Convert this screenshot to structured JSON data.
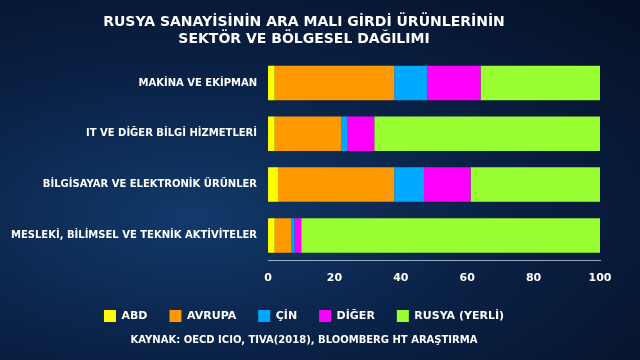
{
  "chart_data": {
    "type": "bar",
    "orientation": "horizontal",
    "stacked": true,
    "title": [
      "RUSYA SANAYİSİNİN ARA MALI GİRDİ ÜRÜNLERİNİN",
      "SEKTÖR VE BÖLGESEL DAĞILIMI"
    ],
    "source": "KAYNAK: OECD ICIO, TIVA(2018), BLOOMBERG HT ARAŞTIRMA",
    "categories": [
      "MAKİNA VE EKİPMAN",
      "IT VE DİĞER BİLGİ HİZMETLERİ",
      "BİLGİSAYAR VE ELEKTRONİK ÜRÜNLER",
      "MESLEKİ, BİLİMSEL VE TEKNİK AKTİVİTELER"
    ],
    "series": [
      {
        "name": "ABD",
        "color": "#ffff00",
        "values": [
          2,
          2,
          3,
          2
        ]
      },
      {
        "name": "AVRUPA",
        "color": "#ff9900",
        "values": [
          36,
          20,
          35,
          5
        ]
      },
      {
        "name": "ÇİN",
        "color": "#00a8ff",
        "values": [
          10,
          2,
          9,
          1
        ]
      },
      {
        "name": "DİĞER",
        "color": "#ff00ff",
        "values": [
          16,
          8,
          14,
          2
        ]
      },
      {
        "name": "RUSYA (YERLİ)",
        "color": "#99ff33",
        "values": [
          36,
          68,
          39,
          90
        ]
      }
    ],
    "xlim": [
      0,
      100
    ],
    "xticks": [
      0,
      20,
      40,
      60,
      80,
      100
    ],
    "grid": false,
    "legend": "bottom"
  }
}
